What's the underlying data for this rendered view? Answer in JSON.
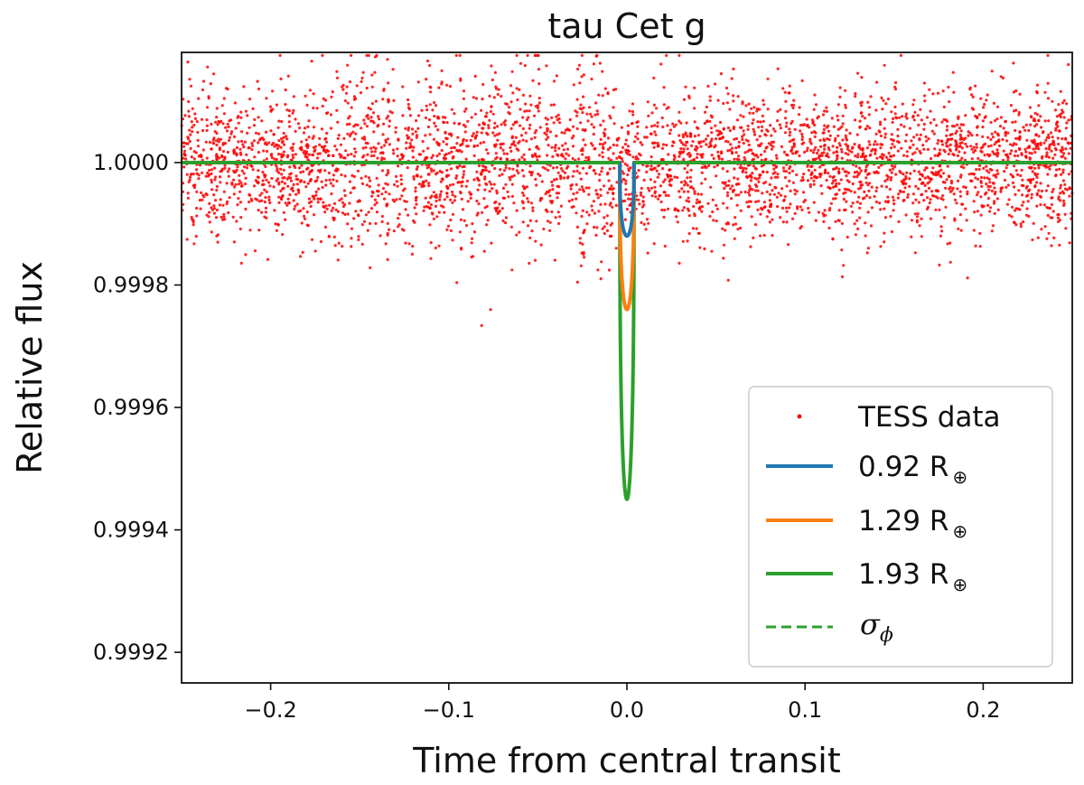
{
  "chart_data": {
    "type": "scatter",
    "title": "tau Cet g",
    "xlabel": "Time from central transit",
    "ylabel": "Relative flux",
    "xlim": [
      -0.25,
      0.25
    ],
    "ylim": [
      0.99915,
      1.00018
    ],
    "x_ticks": [
      -0.2,
      -0.1,
      0.0,
      0.1,
      0.2
    ],
    "x_tick_labels": [
      "−0.2",
      "−0.1",
      "0.0",
      "0.1",
      "0.2"
    ],
    "y_ticks": [
      0.9992,
      0.9994,
      0.9996,
      0.9998,
      1.0
    ],
    "y_tick_labels": [
      "0.9992",
      "0.9994",
      "0.9996",
      "0.9998",
      "1.0000"
    ],
    "grid": false,
    "legend_position": "lower-right",
    "data_series": {
      "name": "TESS data",
      "kind": "scatter",
      "color": "#ff0000",
      "x_range": [
        -0.25,
        0.25
      ],
      "baseline": 1.0,
      "scatter_sigma": 6e-05,
      "approx_point_count": 4000
    },
    "series": [
      {
        "name": "0.92 R",
        "subscript": "⊕",
        "color": "#1f77b4",
        "baseline": 1.0,
        "min_flux": 0.99988,
        "transit_center": 0.0,
        "transit_halfwidth": 0.004
      },
      {
        "name": "1.29 R",
        "subscript": "⊕",
        "color": "#ff7f0e",
        "baseline": 1.0,
        "min_flux": 0.99976,
        "transit_center": 0.0,
        "transit_halfwidth": 0.004
      },
      {
        "name": "1.93 R",
        "subscript": "⊕",
        "color": "#2ca02c",
        "baseline": 1.0,
        "min_flux": 0.99945,
        "transit_center": 0.0,
        "transit_halfwidth": 0.004
      }
    ],
    "sigma_line": {
      "label": "σ",
      "subscript": "ϕ",
      "color": "#2ca02c",
      "style": "dashed",
      "value": 1.0
    }
  }
}
